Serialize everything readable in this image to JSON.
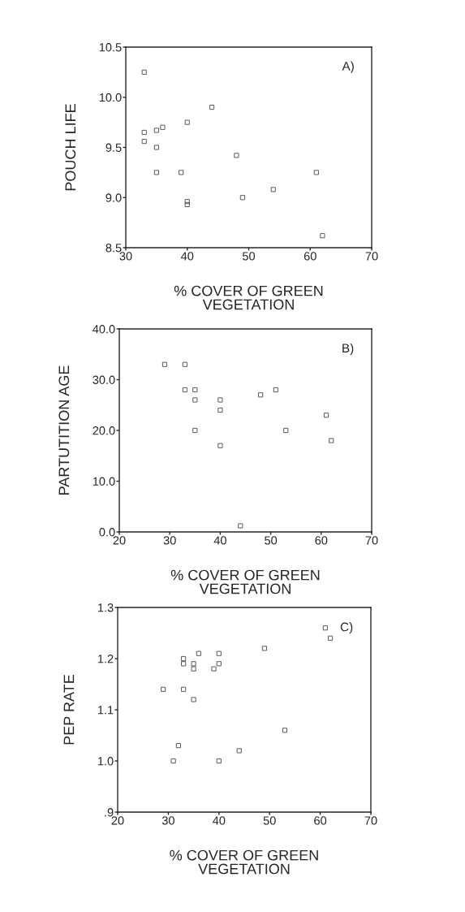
{
  "chart_data": [
    {
      "type": "scatter",
      "xlabel": "% COVER OF GREEN\nVEGETATION",
      "ylabel": "POUCH LIFE",
      "annotations": [
        "A)"
      ],
      "marker": "square",
      "grid": false,
      "legend": false,
      "series": [
        {
          "color": "#555555",
          "x": [
            33,
            44,
            40,
            36,
            35,
            33,
            33,
            35,
            48,
            35,
            39,
            61,
            54,
            49,
            40,
            40,
            62
          ],
          "values": [
            10.25,
            9.9,
            9.75,
            9.7,
            9.67,
            9.65,
            9.56,
            9.5,
            9.42,
            9.25,
            9.25,
            9.25,
            9.08,
            9.0,
            8.96,
            8.93,
            8.62
          ]
        }
      ],
      "xlim": [
        30,
        70
      ],
      "xticks": [
        30,
        40,
        50,
        60,
        70
      ],
      "ylim": [
        8.5,
        10.5
      ],
      "yticks": [
        {
          "value": 8.5,
          "label": "8.5"
        },
        {
          "value": 9.0,
          "label": "9.0"
        },
        {
          "value": 9.5,
          "label": "9.5"
        },
        {
          "value": 10.0,
          "label": "10.0"
        },
        {
          "value": 10.5,
          "label": "10.5"
        }
      ]
    },
    {
      "type": "scatter",
      "xlabel": "% COVER OF GREEN\nVEGETATION",
      "ylabel": "PARTUTITION AGE",
      "annotations": [
        "B)"
      ],
      "marker": "square",
      "grid": false,
      "legend": false,
      "series": [
        {
          "color": "#555555",
          "x": [
            29,
            33,
            33,
            35,
            35,
            35,
            40,
            40,
            40,
            48,
            51,
            53,
            61,
            62,
            44
          ],
          "values": [
            33,
            33,
            28,
            28,
            26,
            20,
            26,
            24,
            17,
            27,
            28,
            20,
            23,
            18,
            1.2
          ]
        }
      ],
      "xlim": [
        20,
        70
      ],
      "xticks": [
        20,
        30,
        40,
        50,
        60,
        70
      ],
      "ylim": [
        0,
        40
      ],
      "yticks": [
        {
          "value": 0,
          "label": "0.0"
        },
        {
          "value": 10,
          "label": "10.0"
        },
        {
          "value": 20,
          "label": "20.0"
        },
        {
          "value": 30,
          "label": "30.0"
        },
        {
          "value": 40,
          "label": "40.0"
        }
      ]
    },
    {
      "type": "scatter",
      "xlabel": "% COVER OF GREEN\nVEGETATION",
      "ylabel": "PEP RATE",
      "annotations": [
        "C)"
      ],
      "marker": "square",
      "grid": false,
      "legend": false,
      "series": [
        {
          "color": "#555555",
          "x": [
            29,
            31,
            32,
            33,
            33,
            33,
            35,
            35,
            35,
            36,
            39,
            40,
            40,
            40,
            44,
            49,
            53,
            61,
            62
          ],
          "values": [
            1.14,
            1.0,
            1.03,
            1.2,
            1.19,
            1.14,
            1.19,
            1.18,
            1.12,
            1.21,
            1.18,
            1.21,
            1.19,
            1.0,
            1.02,
            1.22,
            1.06,
            1.26,
            1.24
          ]
        }
      ],
      "xlim": [
        20,
        70
      ],
      "xticks": [
        20,
        30,
        40,
        50,
        60,
        70
      ],
      "ylim": [
        0.9,
        1.3
      ],
      "yticks": [
        {
          "value": 0.9,
          "label": ".9"
        },
        {
          "value": 1.0,
          "label": "1.0"
        },
        {
          "value": 1.1,
          "label": "1.1"
        },
        {
          "value": 1.2,
          "label": "1.2"
        },
        {
          "value": 1.3,
          "label": "1.3"
        }
      ]
    }
  ]
}
